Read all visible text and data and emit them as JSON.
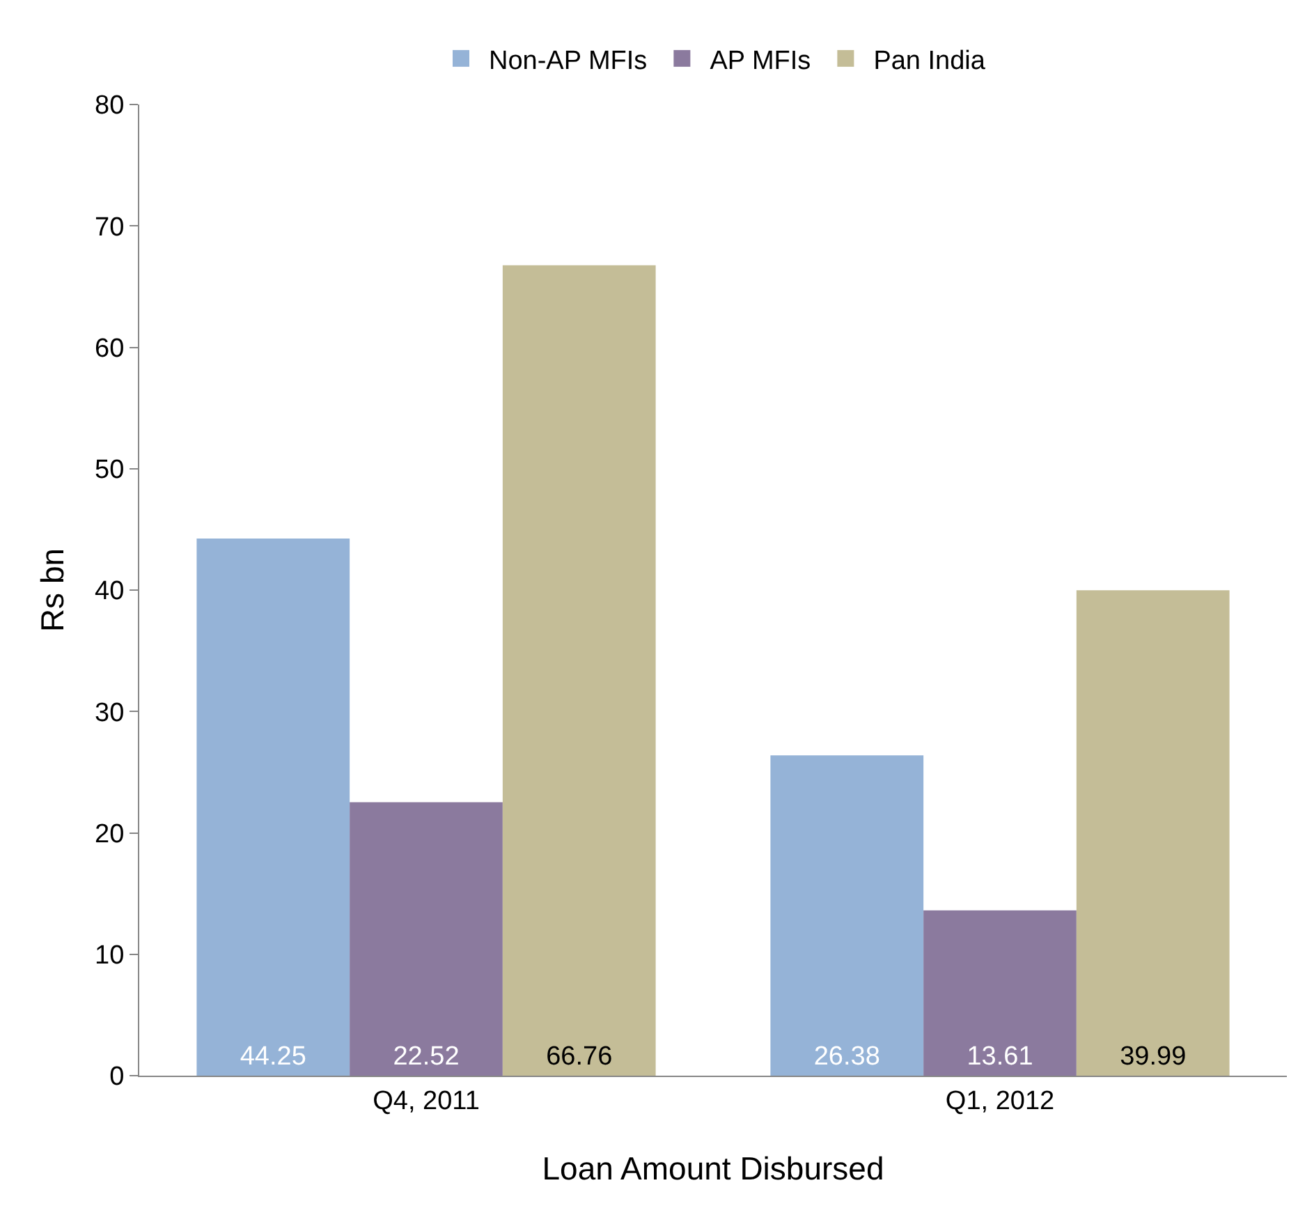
{
  "chart_data": {
    "type": "bar",
    "xlabel": "Loan Amount Disbursed",
    "ylabel": "Rs bn",
    "categories": [
      "Q4, 2011",
      "Q1, 2012"
    ],
    "series": [
      {
        "name": "Non-AP MFIs",
        "color": "#95b3d7",
        "values": [
          44.25,
          26.38
        ]
      },
      {
        "name": "AP MFIs",
        "color": "#8b7a9e",
        "values": [
          22.52,
          13.61
        ]
      },
      {
        "name": "Pan India",
        "color": "#c4bd97",
        "values": [
          66.76,
          39.99
        ]
      }
    ],
    "ylim": [
      0,
      80
    ],
    "yticks": [
      0,
      10,
      20,
      30,
      40,
      50,
      60,
      70,
      80
    ],
    "data_labels": true,
    "legend": "top",
    "grid": false
  }
}
